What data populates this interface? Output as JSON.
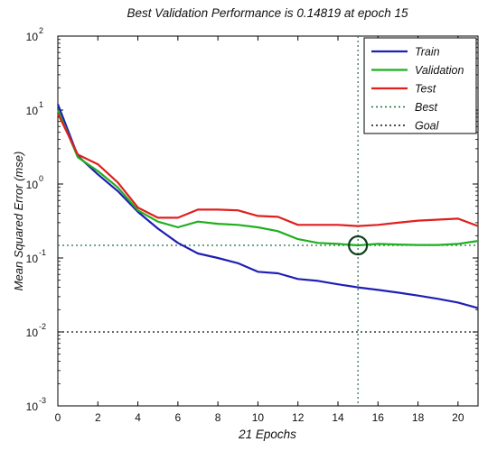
{
  "chart_data": {
    "type": "line",
    "title": "Best Validation Performance is 0.14819 at epoch 15",
    "xlabel": "21 Epochs",
    "ylabel": "Mean Squared Error  (mse)",
    "xlim": [
      0,
      21
    ],
    "ylim": [
      0.001,
      100
    ],
    "yscale": "log",
    "grid": false,
    "legend_position": "top-right",
    "x_ticks": [
      0,
      2,
      4,
      6,
      8,
      10,
      12,
      14,
      16,
      18,
      20
    ],
    "y_ticks": [
      {
        "value": 100,
        "label": "10",
        "exp": "2"
      },
      {
        "value": 10,
        "label": "10",
        "exp": "1"
      },
      {
        "value": 1,
        "label": "10",
        "exp": "0"
      },
      {
        "value": 0.1,
        "label": "10",
        "exp": "-1"
      },
      {
        "value": 0.01,
        "label": "10",
        "exp": "-2"
      },
      {
        "value": 0.001,
        "label": "10",
        "exp": "-3"
      }
    ],
    "x": [
      0,
      1,
      2,
      3,
      4,
      5,
      6,
      7,
      8,
      9,
      10,
      11,
      12,
      13,
      14,
      15,
      16,
      17,
      18,
      19,
      20,
      21
    ],
    "series": [
      {
        "name": "Train",
        "color": "#1f1fb4",
        "style": "solid",
        "values": [
          12,
          2.4,
          1.35,
          0.8,
          0.42,
          0.25,
          0.16,
          0.115,
          0.1,
          0.085,
          0.065,
          0.062,
          0.052,
          0.049,
          0.044,
          0.04,
          0.037,
          0.034,
          0.031,
          0.028,
          0.025,
          0.021
        ]
      },
      {
        "name": "Validation",
        "color": "#1faf1f",
        "style": "solid",
        "values": [
          10,
          2.3,
          1.5,
          0.9,
          0.44,
          0.31,
          0.26,
          0.31,
          0.29,
          0.28,
          0.26,
          0.23,
          0.18,
          0.16,
          0.155,
          0.148,
          0.155,
          0.152,
          0.15,
          0.15,
          0.155,
          0.17
        ]
      },
      {
        "name": "Test",
        "color": "#e01f1f",
        "style": "solid",
        "values": [
          9,
          2.5,
          1.85,
          1.05,
          0.48,
          0.35,
          0.35,
          0.45,
          0.45,
          0.44,
          0.37,
          0.36,
          0.28,
          0.28,
          0.28,
          0.27,
          0.28,
          0.3,
          0.32,
          0.33,
          0.34,
          0.27
        ]
      }
    ],
    "legend": [
      {
        "label": "Train",
        "color": "#1f1fb4",
        "style": "solid"
      },
      {
        "label": "Validation",
        "color": "#1faf1f",
        "style": "solid"
      },
      {
        "label": "Test",
        "color": "#e01f1f",
        "style": "solid"
      },
      {
        "label": "Best",
        "color": "#1f6f3f",
        "style": "dotted"
      },
      {
        "label": "Goal",
        "color": "#111111",
        "style": "dotted"
      }
    ],
    "best": {
      "epoch": 15,
      "value": 0.14819
    },
    "goal": 0.01
  }
}
